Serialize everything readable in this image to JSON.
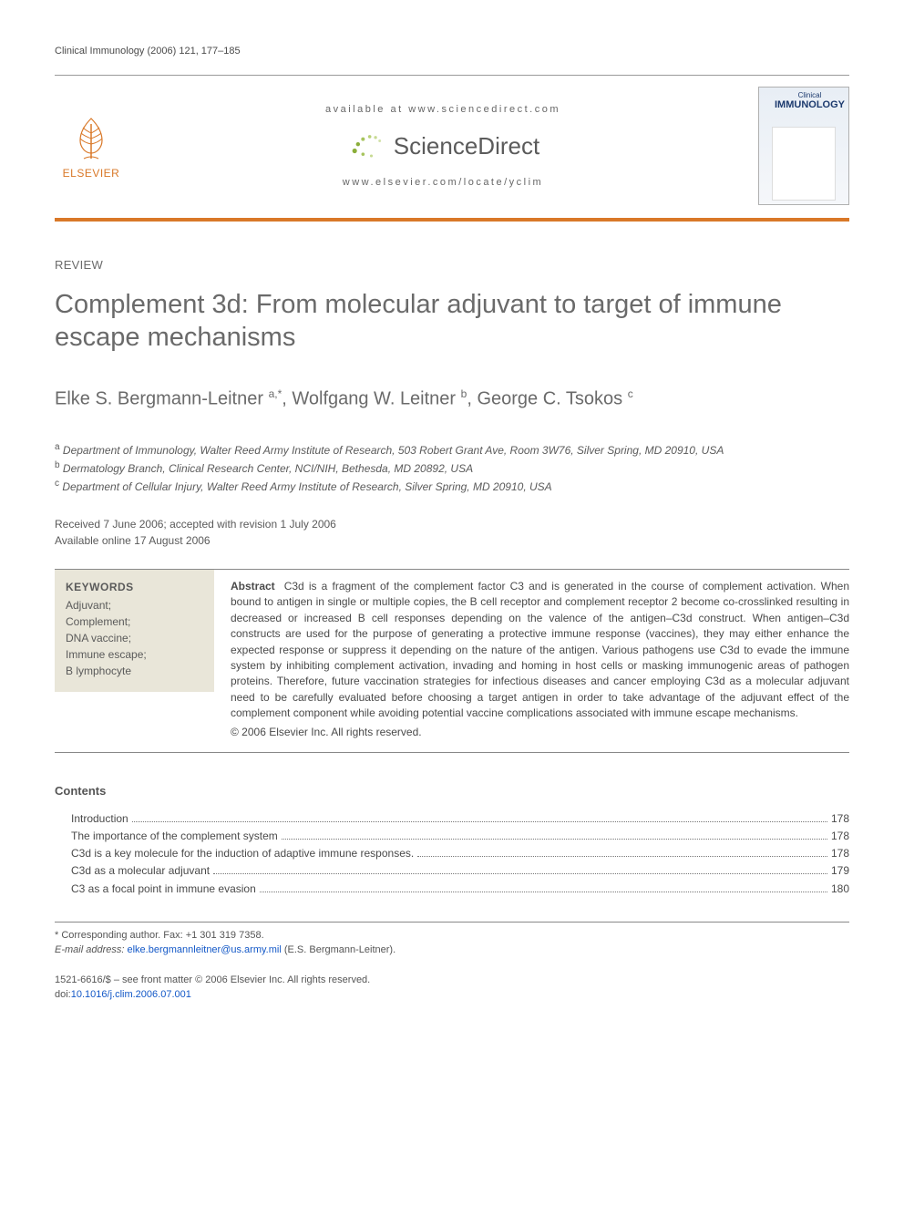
{
  "running_header": "Clinical Immunology (2006) 121, 177–185",
  "masthead": {
    "publisher_name": "ELSEVIER",
    "publisher_color": "#d97828",
    "available_text": "available at www.sciencedirect.com",
    "brand_text": "ScienceDirect",
    "brand_dot_color": "#8bae3a",
    "locate_url": "www.elsevier.com/locate/yclim",
    "accent_bar_color": "#d97828",
    "journal_cover_small": "Clinical",
    "journal_cover_big": "IMMUNOLOGY"
  },
  "article": {
    "section_label": "REVIEW",
    "title": "Complement 3d: From molecular adjuvant to target of immune escape mechanisms",
    "title_color": "#6a6a6a",
    "title_fontsize": 29,
    "authors_html": "Elke S. Bergmann-Leitner ",
    "authors": [
      {
        "name": "Elke S. Bergmann-Leitner",
        "markers": "a,*"
      },
      {
        "name": "Wolfgang W. Leitner",
        "markers": "b"
      },
      {
        "name": "George C. Tsokos",
        "markers": "c"
      }
    ],
    "affiliations": [
      {
        "marker": "a",
        "text": "Department of Immunology, Walter Reed Army Institute of Research, 503 Robert Grant Ave, Room 3W76, Silver Spring, MD 20910, USA"
      },
      {
        "marker": "b",
        "text": "Dermatology Branch, Clinical Research Center, NCI/NIH, Bethesda, MD 20892, USA"
      },
      {
        "marker": "c",
        "text": "Department of Cellular Injury, Walter Reed Army Institute of Research, Silver Spring, MD 20910, USA"
      }
    ],
    "history_line1": "Received 7 June 2006; accepted with revision 1 July 2006",
    "history_line2": "Available online 17 August 2006"
  },
  "keywords": {
    "heading": "KEYWORDS",
    "bg_color": "#e9e6d9",
    "items": [
      "Adjuvant;",
      "Complement;",
      "DNA vaccine;",
      "Immune escape;",
      "B lymphocyte"
    ]
  },
  "abstract": {
    "heading": "Abstract",
    "body": "C3d is a fragment of the complement factor C3 and is generated in the course of complement activation. When bound to antigen in single or multiple copies, the B cell receptor and complement receptor 2 become co-crosslinked resulting in decreased or increased B cell responses depending on the valence of the antigen–C3d construct. When antigen–C3d constructs are used for the purpose of generating a protective immune response (vaccines), they may either enhance the expected response or suppress it depending on the nature of the antigen. Various pathogens use C3d to evade the immune system by inhibiting complement activation, invading and homing in host cells or masking immunogenic areas of pathogen proteins. Therefore, future vaccination strategies for infectious diseases and cancer employing C3d as a molecular adjuvant need to be carefully evaluated before choosing a target antigen in order to take advantage of the adjuvant effect of the complement component while avoiding potential vaccine complications associated with immune escape mechanisms.",
    "copyright": "© 2006 Elsevier Inc. All rights reserved."
  },
  "contents": {
    "heading": "Contents",
    "items": [
      {
        "title": "Introduction",
        "page": "178"
      },
      {
        "title": "The importance of the complement system",
        "page": "178"
      },
      {
        "title": "C3d is a key molecule for the induction of adaptive immune responses.",
        "page": "178"
      },
      {
        "title": "C3d as a molecular adjuvant",
        "page": "179"
      },
      {
        "title": "C3 as a focal point in immune evasion",
        "page": "180"
      }
    ]
  },
  "footnotes": {
    "corresponding": "* Corresponding author. Fax: +1 301 319 7358.",
    "email_label": "E-mail address:",
    "email": "elke.bergmannleitner@us.army.mil",
    "email_owner": "(E.S. Bergmann-Leitner)."
  },
  "footer": {
    "line": "1521-6616/$ – see front matter © 2006 Elsevier Inc. All rights reserved.",
    "doi_prefix": "doi:",
    "doi": "10.1016/j.clim.2006.07.001",
    "link_color": "#1358c7"
  }
}
